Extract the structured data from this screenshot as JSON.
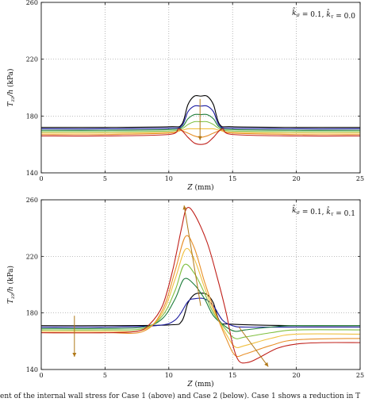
{
  "caption": "ent of the internal wall stress for Case 1 (above) and Case 2 (below). Case 1 shows a reduction in T",
  "colors": {
    "series": [
      "#000000",
      "#1a1aa0",
      "#1e7d3a",
      "#7fbf3f",
      "#f0c040",
      "#e8902a",
      "#c0201a"
    ],
    "arrow": "#b07818",
    "grid": "#999999",
    "axis": "#111111"
  },
  "chart_data": [
    {
      "type": "line",
      "annotation": "k̂σ = 0.1, k̂τ = 0.0",
      "xlabel": "Z (mm)",
      "ylabel": "Tzz/h (kPa)",
      "xlim": [
        0,
        25
      ],
      "ylim": [
        140,
        260
      ],
      "xticks": [
        0,
        5,
        10,
        15,
        20,
        25
      ],
      "yticks": [
        140,
        180,
        220,
        260
      ],
      "grid": true,
      "arrows": [
        {
          "from": [
            12.45,
            192
          ],
          "to": [
            12.45,
            163
          ]
        }
      ],
      "series": [
        {
          "x": [
            0,
            5,
            10,
            11,
            11.5,
            12,
            12.5,
            13,
            13.5,
            14,
            15,
            20,
            25
          ],
          "y": [
            172,
            172,
            172.5,
            174,
            188,
            194,
            194,
            194,
            188,
            174,
            172.5,
            172,
            172
          ]
        },
        {
          "x": [
            0,
            5,
            10,
            11,
            11.5,
            12,
            12.5,
            13,
            13.5,
            14,
            15,
            20,
            25
          ],
          "y": [
            171,
            171,
            171.5,
            173,
            183,
            187,
            187,
            187,
            183,
            173,
            171.5,
            171,
            171
          ]
        },
        {
          "x": [
            0,
            5,
            10,
            11,
            11.5,
            12,
            12.5,
            13,
            13.5,
            14,
            15,
            20,
            25
          ],
          "y": [
            170,
            170,
            170.5,
            172,
            178,
            181,
            181,
            181,
            178,
            172,
            170.5,
            170,
            170
          ]
        },
        {
          "x": [
            0,
            5,
            10,
            11,
            11.5,
            12,
            12.5,
            13,
            13.5,
            14,
            15,
            20,
            25
          ],
          "y": [
            169,
            169,
            169.5,
            171,
            174,
            176,
            176,
            176,
            174,
            171,
            169.5,
            169,
            169
          ]
        },
        {
          "x": [
            0,
            5,
            10,
            11,
            11.5,
            12,
            12.5,
            13,
            13.5,
            14,
            15,
            20,
            25
          ],
          "y": [
            168,
            168,
            168.5,
            170,
            171,
            171,
            171,
            171,
            171,
            170,
            168.5,
            168,
            168
          ]
        },
        {
          "x": [
            0,
            5,
            10,
            10.8,
            11.5,
            12,
            12.5,
            13,
            13.5,
            14.2,
            15,
            20,
            25
          ],
          "y": [
            167,
            167,
            168,
            170,
            168,
            166,
            165,
            166,
            168,
            170,
            168,
            167,
            167
          ]
        },
        {
          "x": [
            0,
            5,
            10,
            10.8,
            11.5,
            12,
            12.5,
            13,
            13.5,
            14.2,
            15,
            20,
            25
          ],
          "y": [
            166,
            166,
            167,
            171,
            165,
            161,
            160,
            161,
            165,
            171,
            167,
            166,
            166
          ]
        }
      ]
    },
    {
      "type": "line",
      "annotation": "k̂σ = 0.1, k̂τ = 0.1",
      "xlabel": "Z (mm)",
      "ylabel": "Tzz/h (kPa)",
      "xlim": [
        0,
        25
      ],
      "ylim": [
        140,
        260
      ],
      "xticks": [
        0,
        5,
        10,
        15,
        20,
        25
      ],
      "yticks": [
        140,
        180,
        220,
        260
      ],
      "grid": true,
      "arrows": [
        {
          "from": [
            2.6,
            178
          ],
          "to": [
            2.6,
            149
          ]
        },
        {
          "from": [
            12.5,
            185
          ],
          "to": [
            11.2,
            256
          ]
        },
        {
          "from": [
            15.5,
            170
          ],
          "to": [
            17.8,
            142
          ]
        }
      ],
      "series": [
        {
          "x": [
            0,
            5,
            10,
            11,
            11.5,
            12,
            12.5,
            13,
            13.5,
            14,
            15,
            20,
            25
          ],
          "y": [
            171,
            171,
            171.5,
            174,
            187,
            193,
            194,
            193,
            187,
            174,
            172,
            171,
            171
          ]
        },
        {
          "x": [
            0,
            5,
            9,
            10.5,
            11.5,
            12,
            12.8,
            13.5,
            14.2,
            15,
            16,
            20,
            25
          ],
          "y": [
            170,
            170,
            171,
            175,
            188,
            190,
            190,
            185,
            175,
            171,
            170,
            170,
            170
          ]
        },
        {
          "x": [
            0,
            5,
            8,
            9.5,
            10.5,
            11.2,
            12,
            12.8,
            13.5,
            14.5,
            15.2,
            16,
            18,
            20,
            25
          ],
          "y": [
            169,
            169,
            170,
            176,
            190,
            204,
            200,
            190,
            178,
            170,
            167,
            168,
            170,
            171,
            171
          ]
        },
        {
          "x": [
            0,
            5,
            8,
            9.5,
            10.5,
            11.2,
            12,
            12.8,
            13.5,
            14.5,
            15.2,
            16,
            18,
            20,
            25
          ],
          "y": [
            168,
            168,
            169,
            178,
            196,
            214,
            208,
            194,
            180,
            168,
            162,
            163,
            166,
            168,
            168
          ]
        },
        {
          "x": [
            0,
            5,
            8,
            9.5,
            10.5,
            11.3,
            12,
            12.8,
            13.5,
            14.5,
            15.2,
            16,
            18,
            20,
            25
          ],
          "y": [
            167,
            167,
            168,
            180,
            204,
            225,
            218,
            198,
            182,
            165,
            156,
            157,
            162,
            165,
            165
          ]
        },
        {
          "x": [
            0,
            5,
            8,
            9.5,
            10.5,
            11.3,
            12,
            12.8,
            13.5,
            14.5,
            15.2,
            16,
            18,
            20,
            25
          ],
          "y": [
            166,
            166,
            167,
            182,
            210,
            234,
            226,
            202,
            184,
            162,
            150,
            151,
            157,
            161,
            162
          ]
        },
        {
          "x": [
            0,
            5,
            7.5,
            8.5,
            9.5,
            10.3,
            11,
            11.4,
            12,
            13,
            13.8,
            14.5,
            15,
            15.5,
            16.2,
            17,
            18.5,
            20,
            22,
            25
          ],
          "y": [
            166,
            166,
            167,
            172,
            185,
            210,
            240,
            254,
            250,
            230,
            205,
            180,
            158,
            146,
            145,
            148,
            155,
            158,
            159,
            159
          ]
        }
      ]
    }
  ]
}
